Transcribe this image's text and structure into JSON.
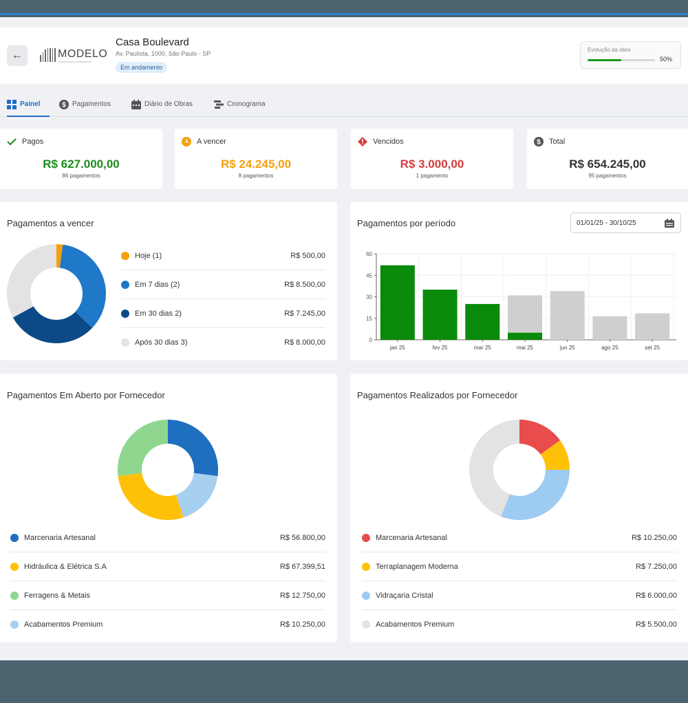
{
  "header": {
    "logo_text": "MODELO",
    "logo_sub": "CONSTRUÇÕES | ACABAMENTOS",
    "project_title": "Casa Boulevard",
    "address": "Av. Paulista, 1000, São Paulo - SP",
    "status_badge": "Em andamento",
    "progress_label": "Evolução da obra",
    "progress_value": 50,
    "progress_text": "50%"
  },
  "tabs": [
    {
      "label": "Painel",
      "icon": "grid-icon",
      "active": true
    },
    {
      "label": "Pagamentos",
      "icon": "dollar-icon",
      "active": false
    },
    {
      "label": "Diário de Obras",
      "icon": "calendar-icon",
      "active": false
    },
    {
      "label": "Cronograma",
      "icon": "timeline-icon",
      "active": false
    }
  ],
  "stats": [
    {
      "label": "Pagos",
      "value": "R$ 627.000,00",
      "sub": "86 pagamentos",
      "icon": "check-icon",
      "color": "#1a8c1a"
    },
    {
      "label": "A vencer",
      "value": "R$ 24.245,00",
      "sub": "8 pagamentos",
      "icon": "clock-icon",
      "color": "#f5a00b"
    },
    {
      "label": "Vencidos",
      "value": "R$ 3.000,00",
      "sub": "1 pagamento",
      "icon": "alert-icon",
      "color": "#d63b3b"
    },
    {
      "label": "Total",
      "value": "R$ 654.245,00",
      "sub": "95 pagamentos",
      "icon": "dollar-icon",
      "color": "#333333"
    }
  ],
  "upcoming": {
    "title": "Pagamentos a vencer",
    "items": [
      {
        "label": "Hoje (1)",
        "amount": "R$ 500,00",
        "value": 500,
        "color": "#f5a00b"
      },
      {
        "label": "Em 7 dias (2)",
        "amount": "R$ 8.500,00",
        "value": 8500,
        "color": "#1f78c8"
      },
      {
        "label": "Em 30 dias 2)",
        "amount": "R$ 7.245,00",
        "value": 7245,
        "color": "#0b4a87"
      },
      {
        "label": "Após 30 dias 3)",
        "amount": "R$ 8.000,00",
        "value": 8000,
        "color": "#e3e3e3"
      }
    ]
  },
  "period": {
    "title": "Pagamentos por período",
    "date_range": "01/01/25 - 30/10/25"
  },
  "chart_data": {
    "type": "bar",
    "categories": [
      "jan 25",
      "fev 25",
      "mar 25",
      "mai 25",
      "jun 25",
      "ago 25",
      "set 25"
    ],
    "series": [
      {
        "values": [
          52,
          35,
          25,
          5,
          0,
          0,
          0
        ],
        "color": "#0a8a0a"
      },
      {
        "values": [
          0,
          0,
          0,
          26,
          34,
          16.5,
          18.5
        ],
        "color": "#cfcfcf"
      }
    ],
    "yticks": [
      0,
      15,
      30,
      45,
      60
    ],
    "ylim": [
      0,
      60
    ],
    "xlabel": "",
    "ylabel": ""
  },
  "open_suppliers": {
    "title": "Pagamentos Em Aberto por Fornecedor",
    "items": [
      {
        "label": "Marcenaria Artesanal",
        "amount": "R$ 56.800,00",
        "value": 56800,
        "color": "#1f6fbf"
      },
      {
        "label": "Hidráulica & Elétrica S.A",
        "amount": "R$ 67.399,51",
        "value": 67399.51,
        "color": "#ffc107"
      },
      {
        "label": "Ferragens & Metais",
        "amount": "R$ 12.750,00",
        "value": 12750,
        "color": "#8fd68f"
      },
      {
        "label": "Acabamentos Premium",
        "amount": "R$ 10.250,00",
        "value": 10250,
        "color": "#a7cff0"
      }
    ],
    "donut": [
      {
        "value": 27,
        "color": "#1f6fbf"
      },
      {
        "value": 18,
        "color": "#a7cff0"
      },
      {
        "value": 28,
        "color": "#ffc107"
      },
      {
        "value": 27,
        "color": "#8fd68f"
      }
    ]
  },
  "paid_suppliers": {
    "title": "Pagamentos Realizados por Fornecedor",
    "items": [
      {
        "label": "Marcenaria Artesanal",
        "amount": "R$ 10.250,00",
        "value": 10250,
        "color": "#e84c4c"
      },
      {
        "label": "Terraplanagem Moderna",
        "amount": "R$ 7.250,00",
        "value": 7250,
        "color": "#ffc107"
      },
      {
        "label": "Vidraçaria Cristal",
        "amount": "R$ 6.000,00",
        "value": 6000,
        "color": "#9ecbf2"
      },
      {
        "label": "Acabamentos Premium",
        "amount": "R$ 5.500,00",
        "value": 5500,
        "color": "#e3e3e3"
      }
    ],
    "donut": [
      {
        "value": 15,
        "color": "#e84c4c"
      },
      {
        "value": 10,
        "color": "#ffc107"
      },
      {
        "value": 31,
        "color": "#9ecbf2"
      },
      {
        "value": 44,
        "color": "#e3e3e3"
      }
    ]
  }
}
